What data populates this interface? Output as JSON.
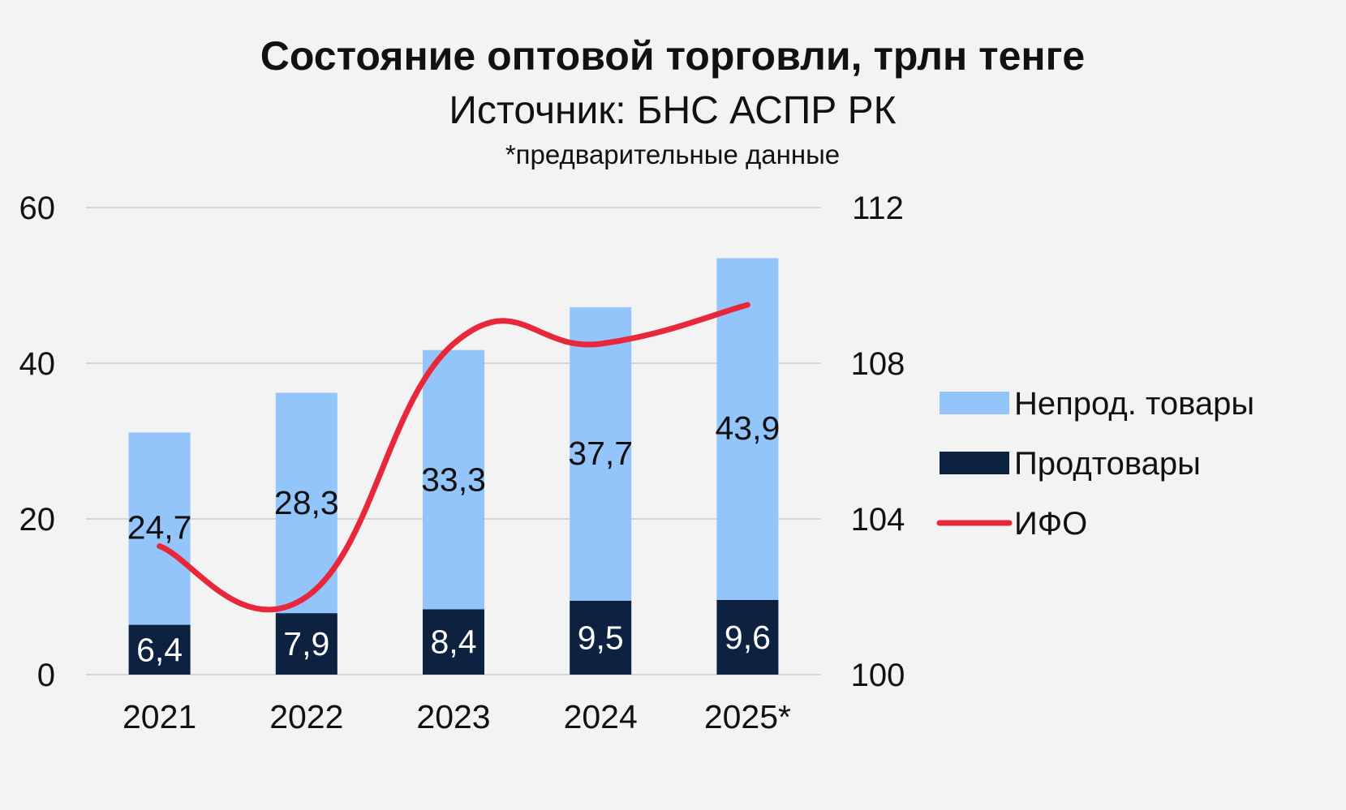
{
  "chart_data": {
    "type": "bar",
    "stacked": true,
    "title": "Состояние оптовой торговли, трлн тенге",
    "subtitle": "Источник: БНС АСПР РК",
    "note": "*предварительные данные",
    "categories": [
      "2021",
      "2022",
      "2023",
      "2024",
      "2025*"
    ],
    "series": [
      {
        "name": "Продтовары",
        "type": "bar",
        "axis": "left",
        "color": "#0d2240",
        "label_color": "#ffffff",
        "values": [
          6.4,
          7.9,
          8.4,
          9.5,
          9.6
        ],
        "labels": [
          "6,4",
          "7,9",
          "8,4",
          "9,5",
          "9,6"
        ]
      },
      {
        "name": "Непрод. товары",
        "type": "bar",
        "axis": "left",
        "color": "#93c5fb",
        "label_color": "#111111",
        "values": [
          24.7,
          28.3,
          33.3,
          37.7,
          43.9
        ],
        "labels": [
          "24,7",
          "28,3",
          "33,3",
          "37,7",
          "43,9"
        ]
      },
      {
        "name": "ИФО",
        "type": "line",
        "axis": "right",
        "color": "#e8283a",
        "values": [
          103.3,
          102.0,
          108.5,
          108.5,
          109.5
        ]
      }
    ],
    "y_left": {
      "min": 0,
      "max": 60,
      "ticks": [
        0,
        20,
        40,
        60
      ]
    },
    "y_right": {
      "min": 100,
      "max": 112,
      "ticks": [
        100,
        104,
        108,
        112
      ]
    },
    "legend": {
      "position": "right",
      "items": [
        {
          "label": "Непрод. товары",
          "color": "#93c5fb",
          "kind": "bar"
        },
        {
          "label": "Продтовары",
          "color": "#0d2240",
          "kind": "bar"
        },
        {
          "label": "ИФО",
          "color": "#e8283a",
          "kind": "line"
        }
      ]
    },
    "grid": true
  }
}
